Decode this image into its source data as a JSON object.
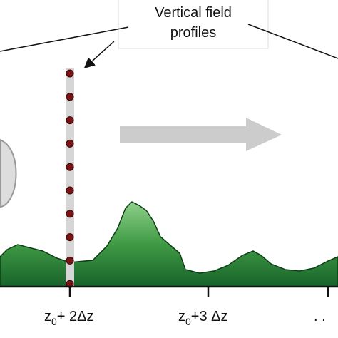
{
  "callout": {
    "lines": [
      "Vertical field",
      "profiles"
    ]
  },
  "axis_labels": [
    {
      "base": "z",
      "sub": "0",
      "rest": "+ 2Δz"
    },
    {
      "base": "z",
      "sub": "0",
      "rest": "+3 Δz"
    }
  ],
  "ellipsis": ". ."
}
